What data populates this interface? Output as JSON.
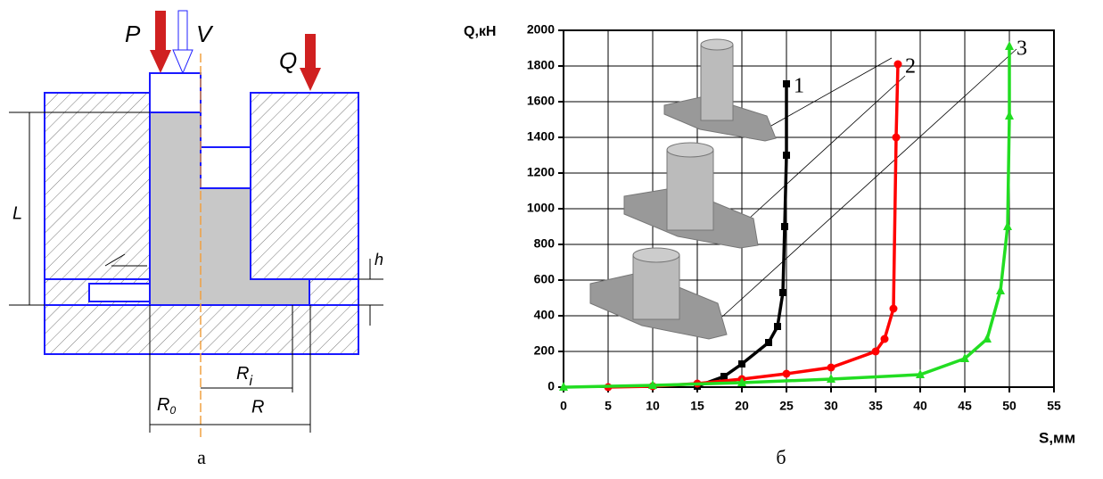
{
  "diagram": {
    "labels": [
      {
        "main": "P"
      },
      {
        "main": "V"
      },
      {
        "main": "Q"
      },
      {
        "main": "L"
      },
      {
        "main": "h"
      },
      {
        "main": "R",
        "sub": "i"
      },
      {
        "main": "R",
        "sub": "0"
      },
      {
        "main": "R"
      }
    ],
    "caption": "а"
  },
  "chart_data": {
    "type": "line",
    "caption": "б",
    "y_label": "Q,кН",
    "x_label": "S,мм",
    "xlim": [
      0,
      55
    ],
    "ylim": [
      0,
      2000
    ],
    "xticks": [
      0,
      5,
      10,
      15,
      20,
      25,
      30,
      35,
      40,
      45,
      50,
      55
    ],
    "yticks": [
      0,
      200,
      400,
      600,
      800,
      1000,
      1200,
      1400,
      1600,
      1800,
      2000
    ],
    "grid": true,
    "series": [
      {
        "name": "1",
        "color": "#000000",
        "marker": "square",
        "x": [
          15,
          18,
          20,
          23,
          24,
          24.6,
          24.8,
          25,
          25
        ],
        "values": [
          5,
          60,
          130,
          250,
          340,
          530,
          900,
          1300,
          1700
        ]
      },
      {
        "name": "2",
        "color": "#ff0000",
        "marker": "circle",
        "x": [
          5,
          10,
          15,
          20,
          25,
          30,
          35,
          36,
          37,
          37.3,
          37.5
        ],
        "values": [
          0,
          5,
          20,
          45,
          75,
          110,
          200,
          270,
          440,
          1400,
          1810
        ]
      },
      {
        "name": "3",
        "color": "#22dd22",
        "marker": "triangle",
        "x": [
          0,
          10,
          20,
          30,
          40,
          45,
          47.5,
          49,
          49.8,
          50,
          50
        ],
        "values": [
          0,
          10,
          25,
          45,
          70,
          160,
          270,
          540,
          900,
          1520,
          1910
        ]
      }
    ]
  }
}
